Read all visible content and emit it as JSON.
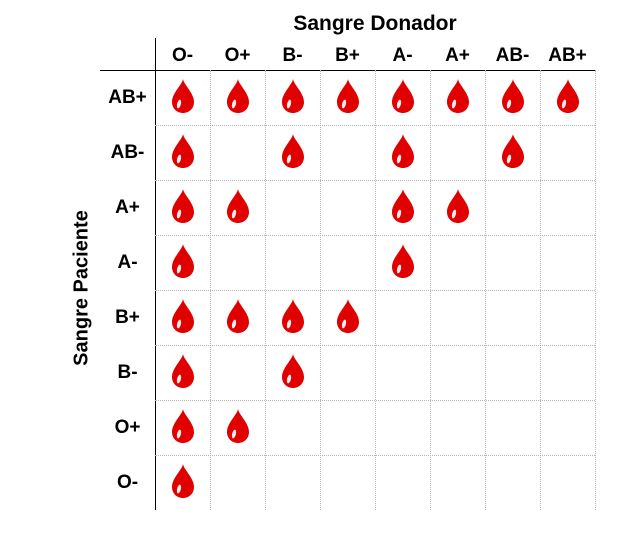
{
  "title": "Sangre Donador",
  "ylabel": "Sangre Paciente",
  "donors": [
    "O-",
    "O+",
    "B-",
    "B+",
    "A-",
    "A+",
    "AB-",
    "AB+"
  ],
  "recipients": [
    "AB+",
    "AB-",
    "A+",
    "A-",
    "B+",
    "B-",
    "O+",
    "O-"
  ],
  "compatibility": [
    [
      1,
      1,
      1,
      1,
      1,
      1,
      1,
      1
    ],
    [
      1,
      0,
      1,
      0,
      1,
      0,
      1,
      0
    ],
    [
      1,
      1,
      0,
      0,
      1,
      1,
      0,
      0
    ],
    [
      1,
      0,
      0,
      0,
      1,
      0,
      0,
      0
    ],
    [
      1,
      1,
      1,
      1,
      0,
      0,
      0,
      0
    ],
    [
      1,
      0,
      1,
      0,
      0,
      0,
      0,
      0
    ],
    [
      1,
      1,
      0,
      0,
      0,
      0,
      0,
      0
    ],
    [
      1,
      0,
      0,
      0,
      0,
      0,
      0,
      0
    ]
  ],
  "icon": "blood-drop-icon",
  "colors": {
    "drop": "#e00000",
    "grid": "#b5b5b5",
    "axis": "#000000"
  }
}
